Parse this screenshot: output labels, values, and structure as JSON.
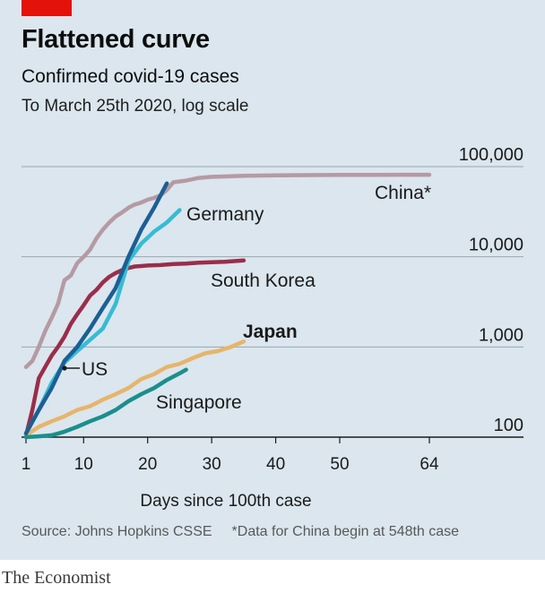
{
  "header": {
    "title": "Flattened curve",
    "subtitle": "Confirmed covid-19 cases",
    "subtitle2": "To March 25th 2020, log scale"
  },
  "footer": {
    "source": "Source: Johns Hopkins CSSE",
    "note": "*Data for China begin at 548th case"
  },
  "brand": "The Economist",
  "colors": {
    "panel": "#dbe6ee",
    "red_tag": "#e3120b",
    "China": "#b59aa3",
    "Germany": "#36bcd3",
    "US": "#1c5f94",
    "South Korea": "#9a2d4a",
    "Japan": "#e6b56b",
    "Singapore": "#1a8f8c"
  },
  "chart_data": {
    "type": "line",
    "xlabel": "Days since 100th case",
    "ylabel": "",
    "log_y": true,
    "xlim": [
      1,
      64
    ],
    "ylim": [
      100,
      100000
    ],
    "x_ticks": [
      1,
      10,
      20,
      30,
      40,
      50,
      64
    ],
    "x_tick_labels": [
      "1",
      "10",
      "20",
      "30",
      "40",
      "50",
      "64"
    ],
    "y_ticks": [
      100,
      1000,
      10000,
      100000
    ],
    "y_tick_labels": [
      "100",
      "1,000",
      "10,000",
      "100,000"
    ],
    "grid": true,
    "series": [
      {
        "name": "China*",
        "bold": false,
        "x": [
          1,
          2,
          3,
          4,
          5,
          6,
          7,
          8,
          9,
          10,
          11,
          12,
          13,
          14,
          15,
          16,
          17,
          18,
          19,
          20,
          21,
          22,
          23,
          24,
          26,
          28,
          30,
          35,
          40,
          45,
          50,
          55,
          60,
          64
        ],
        "y": [
          600,
          700,
          1000,
          1500,
          2100,
          3000,
          5500,
          6200,
          8500,
          10000,
          12000,
          16000,
          20000,
          24000,
          28000,
          31000,
          35000,
          38000,
          40000,
          43000,
          45000,
          48000,
          55000,
          67000,
          70000,
          75000,
          77000,
          79000,
          80000,
          80500,
          81000,
          81000,
          81200,
          81300
        ]
      },
      {
        "name": "Germany",
        "bold": false,
        "x": [
          1,
          3,
          5,
          7,
          9,
          11,
          13,
          15,
          17,
          19,
          21,
          23,
          25
        ],
        "y": [
          110,
          200,
          400,
          670,
          900,
          1200,
          1600,
          3000,
          9000,
          14000,
          19000,
          24000,
          33000
        ]
      },
      {
        "name": "US",
        "bold": false,
        "x": [
          1,
          3,
          5,
          7,
          9,
          11,
          13,
          15,
          17,
          19,
          21,
          23
        ],
        "y": [
          110,
          200,
          350,
          700,
          1000,
          1600,
          2700,
          4500,
          10000,
          20000,
          35000,
          65000
        ]
      },
      {
        "name": "South Korea",
        "bold": false,
        "x": [
          1,
          2,
          3,
          4,
          5,
          6,
          7,
          8,
          9,
          10,
          11,
          12,
          13,
          14,
          15,
          16,
          17,
          18,
          19,
          20,
          22,
          24,
          26,
          28,
          30,
          32,
          34,
          35
        ],
        "y": [
          104,
          200,
          450,
          600,
          800,
          1000,
          1300,
          1800,
          2300,
          2900,
          3700,
          4300,
          5200,
          6000,
          6600,
          7100,
          7500,
          7800,
          7900,
          8000,
          8100,
          8300,
          8400,
          8600,
          8700,
          8800,
          9000,
          9100
        ]
      },
      {
        "name": "Japan",
        "bold": true,
        "x": [
          1,
          3,
          5,
          7,
          9,
          11,
          13,
          15,
          17,
          19,
          21,
          23,
          25,
          27,
          29,
          31,
          33,
          35
        ],
        "y": [
          105,
          130,
          150,
          170,
          200,
          220,
          260,
          300,
          350,
          440,
          500,
          600,
          650,
          750,
          850,
          900,
          1000,
          1150
        ]
      },
      {
        "name": "Singapore",
        "bold": false,
        "x": [
          1,
          3,
          5,
          7,
          9,
          11,
          13,
          15,
          17,
          19,
          21,
          23,
          25,
          26
        ],
        "y": [
          100,
          102,
          105,
          115,
          130,
          150,
          170,
          200,
          250,
          300,
          350,
          430,
          510,
          560
        ]
      }
    ]
  }
}
